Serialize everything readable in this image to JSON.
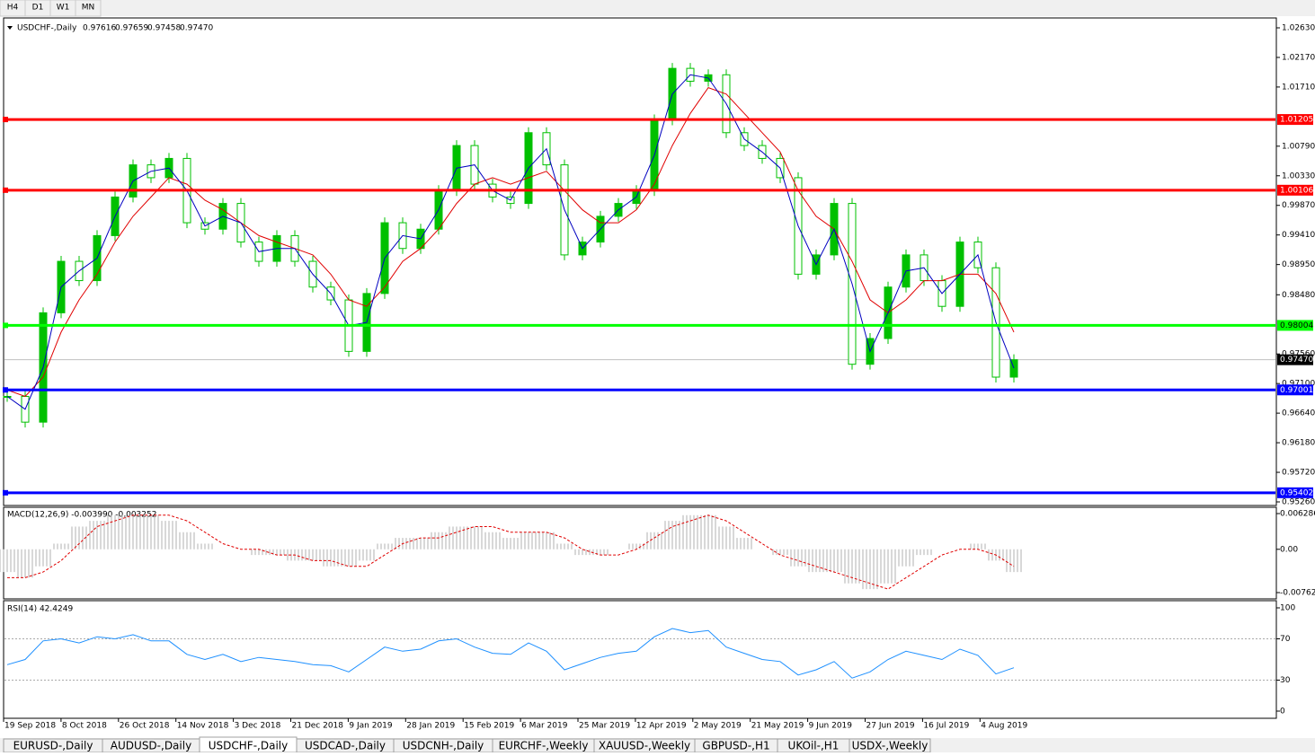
{
  "toolbar": {
    "timeframes": [
      "H4",
      "D1",
      "W1",
      "MN"
    ]
  },
  "header": {
    "symbol": "USDCHF-,Daily",
    "ohlc": [
      "0.97616",
      "0.97659",
      "0.97458",
      "0.97470"
    ]
  },
  "price": {
    "ylim": [
      0.9526,
      1.0263
    ],
    "yticks": [
      {
        "value": 1.0263,
        "label": "1.02630"
      },
      {
        "value": 1.0217,
        "label": "1.02170"
      },
      {
        "value": 1.0171,
        "label": "1.01710"
      },
      {
        "value": 1.0079,
        "label": "1.00790"
      },
      {
        "value": 1.0033,
        "label": "1.00330"
      },
      {
        "value": 0.9987,
        "label": "0.99870"
      },
      {
        "value": 0.9941,
        "label": "0.99410"
      },
      {
        "value": 0.9895,
        "label": "0.98950"
      },
      {
        "value": 0.9848,
        "label": "0.98480"
      },
      {
        "value": 0.9756,
        "label": "0.97560"
      },
      {
        "value": 0.971,
        "label": "0.97100"
      },
      {
        "value": 0.9664,
        "label": "0.96640"
      },
      {
        "value": 0.9618,
        "label": "0.96180"
      },
      {
        "value": 0.9572,
        "label": "0.95720"
      },
      {
        "value": 0.9526,
        "label": "0.95260"
      }
    ],
    "levels": [
      {
        "value": 1.01205,
        "label": "1.01205",
        "color": "#ff0000"
      },
      {
        "value": 1.00106,
        "label": "1.00106",
        "color": "#ff0000"
      },
      {
        "value": 0.98004,
        "label": "0.98004",
        "color": "#00ff00"
      },
      {
        "value": 0.97001,
        "label": "0.97001",
        "color": "#0000ff"
      },
      {
        "value": 0.95402,
        "label": "0.95402",
        "color": "#0000ff"
      }
    ],
    "current": {
      "value": 0.9747,
      "label": "0.97470"
    },
    "close": [
      0.969,
      0.965,
      0.982,
      0.99,
      0.987,
      0.994,
      1.0,
      1.005,
      1.003,
      1.006,
      0.996,
      0.995,
      0.999,
      0.993,
      0.99,
      0.994,
      0.99,
      0.986,
      0.984,
      0.976,
      0.985,
      0.996,
      0.992,
      0.995,
      1.001,
      1.008,
      1.002,
      1.0,
      0.999,
      1.01,
      1.005,
      0.991,
      0.993,
      0.997,
      0.999,
      1.001,
      1.012,
      1.02,
      1.018,
      1.019,
      1.01,
      1.008,
      1.006,
      1.003,
      0.988,
      0.991,
      0.999,
      0.974,
      0.978,
      0.986,
      0.991,
      0.987,
      0.983,
      0.993,
      0.989,
      0.972,
      0.9747
    ],
    "ma_fast": [
      0.969,
      0.967,
      0.9735,
      0.986,
      0.9885,
      0.9905,
      0.997,
      1.0025,
      1.004,
      1.0045,
      1.001,
      0.9955,
      0.997,
      0.996,
      0.9915,
      0.992,
      0.992,
      0.988,
      0.985,
      0.98,
      0.9805,
      0.9905,
      0.994,
      0.9935,
      0.998,
      1.0045,
      1.005,
      1.001,
      0.9995,
      1.0045,
      1.0075,
      0.998,
      0.992,
      0.995,
      0.998,
      1.0,
      1.0065,
      1.016,
      1.019,
      1.0185,
      1.0145,
      1.009,
      1.007,
      1.0045,
      0.9955,
      0.9895,
      0.995,
      0.9865,
      0.976,
      0.982,
      0.9885,
      0.989,
      0.985,
      0.988,
      0.991,
      0.9805,
      0.9734
    ],
    "ma_slow": [
      0.97,
      0.969,
      0.972,
      0.979,
      0.984,
      0.988,
      0.993,
      0.997,
      1.0,
      1.003,
      1.002,
      0.9995,
      0.998,
      0.996,
      0.994,
      0.993,
      0.992,
      0.991,
      0.988,
      0.984,
      0.983,
      0.986,
      0.99,
      0.992,
      0.995,
      0.999,
      1.002,
      1.003,
      1.002,
      1.003,
      1.004,
      1.001,
      0.998,
      0.996,
      0.996,
      0.998,
      1.002,
      1.008,
      1.013,
      1.017,
      1.016,
      1.013,
      1.01,
      1.007,
      1.001,
      0.997,
      0.995,
      0.99,
      0.984,
      0.982,
      0.984,
      0.987,
      0.987,
      0.988,
      0.988,
      0.985,
      0.979
    ]
  },
  "macd": {
    "title": "MACD(12,26,9) -0.003990 -0.003252",
    "ylim": [
      -0.00762,
      0.006286
    ],
    "yticks": [
      {
        "value": 0.006286,
        "label": "0.006286"
      },
      {
        "value": 0,
        "label": "0.00"
      },
      {
        "value": -0.00762,
        "label": "-0.00762"
      }
    ],
    "hist": [
      -0.004,
      -0.005,
      -0.003,
      0.001,
      0.004,
      0.005,
      0.006,
      0.006,
      0.006,
      0.005,
      0.003,
      0.001,
      0,
      0,
      -0.001,
      -0.001,
      -0.002,
      -0.002,
      -0.003,
      -0.003,
      -0.002,
      0.001,
      0.002,
      0.002,
      0.003,
      0.004,
      0.004,
      0.003,
      0.002,
      0.003,
      0.003,
      0.001,
      -0.001,
      -0.001,
      0,
      0.001,
      0.003,
      0.005,
      0.006,
      0.006,
      0.004,
      0.002,
      0,
      -0.001,
      -0.003,
      -0.004,
      -0.004,
      -0.006,
      -0.007,
      -0.006,
      -0.003,
      -0.001,
      0,
      0,
      0.001,
      -0.002,
      -0.004
    ],
    "signal": [
      -0.005,
      -0.005,
      -0.004,
      -0.002,
      0.001,
      0.004,
      0.005,
      0.006,
      0.006,
      0.006,
      0.005,
      0.003,
      0.001,
      0,
      0,
      -0.001,
      -0.001,
      -0.002,
      -0.002,
      -0.003,
      -0.003,
      -0.001,
      0.001,
      0.002,
      0.002,
      0.003,
      0.004,
      0.004,
      0.003,
      0.003,
      0.003,
      0.002,
      0,
      -0.001,
      -0.001,
      0,
      0.002,
      0.004,
      0.005,
      0.006,
      0.005,
      0.003,
      0.001,
      -0.001,
      -0.002,
      -0.003,
      -0.004,
      -0.005,
      -0.006,
      -0.007,
      -0.005,
      -0.003,
      -0.001,
      0,
      0,
      -0.001,
      -0.003
    ]
  },
  "rsi": {
    "title": "RSI(14) 42.4249",
    "ylim": [
      0,
      100
    ],
    "yticks": [
      100,
      70,
      30,
      0
    ],
    "levels": [
      70,
      30
    ],
    "values": [
      45,
      50,
      68,
      70,
      66,
      72,
      70,
      74,
      68,
      68,
      55,
      50,
      55,
      48,
      52,
      50,
      48,
      45,
      44,
      38,
      50,
      62,
      58,
      60,
      68,
      70,
      62,
      56,
      55,
      66,
      58,
      40,
      46,
      52,
      56,
      58,
      72,
      80,
      76,
      78,
      62,
      56,
      50,
      48,
      35,
      40,
      48,
      32,
      38,
      50,
      58,
      54,
      50,
      60,
      54,
      36,
      42
    ]
  },
  "time_labels": [
    "19 Sep 2018",
    "8 Oct 2018",
    "26 Oct 2018",
    "14 Nov 2018",
    "3 Dec 2018",
    "21 Dec 2018",
    "9 Jan 2019",
    "28 Jan 2019",
    "15 Feb 2019",
    "6 Mar 2019",
    "25 Mar 2019",
    "12 Apr 2019",
    "2 May 2019",
    "21 May 2019",
    "9 Jun 2019",
    "27 Jun 2019",
    "16 Jul 2019",
    "4 Aug 2019"
  ],
  "tabs": [
    "EURUSD-,Daily",
    "AUDUSD-,Daily",
    "USDCHF-,Daily",
    "USDCAD-,Daily",
    "USDCNH-,Daily",
    "EURCHF-,Weekly",
    "XAUUSD-,Weekly",
    "GBPUSD-,H1",
    "UKOil-,H1",
    "USDX-,Weekly"
  ],
  "active_tab": 2
}
